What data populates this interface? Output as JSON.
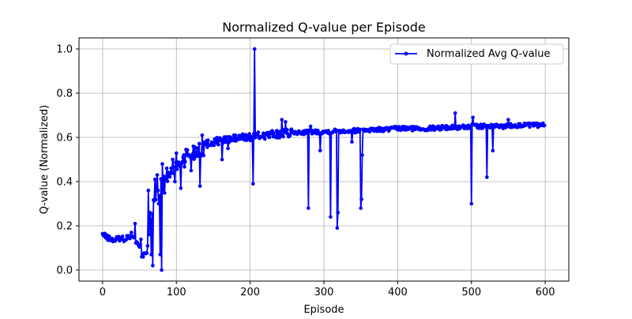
{
  "chart_data": {
    "type": "line",
    "title": "Normalized Q-value per Episode",
    "xlabel": "Episode",
    "ylabel": "Q-value (Normalized)",
    "xlim": [
      -32,
      632
    ],
    "ylim": [
      -0.05,
      1.05
    ],
    "xticks": [
      0,
      100,
      200,
      300,
      400,
      500,
      600
    ],
    "yticks": [
      0.0,
      0.2,
      0.4,
      0.6,
      0.8,
      1.0
    ],
    "xtick_labels": [
      "0",
      "100",
      "200",
      "300",
      "400",
      "500",
      "600"
    ],
    "ytick_labels": [
      "0.0",
      "0.2",
      "0.4",
      "0.6",
      "0.8",
      "1.0"
    ],
    "grid": true,
    "legend_position": "top-right",
    "series": [
      {
        "name": "Normalized Avg Q-value",
        "color": "#0000ff",
        "marker": "circle",
        "anchors": [
          [
            0,
            0.16
          ],
          [
            5,
            0.15
          ],
          [
            10,
            0.14
          ],
          [
            15,
            0.135
          ],
          [
            20,
            0.14
          ],
          [
            25,
            0.145
          ],
          [
            30,
            0.14
          ],
          [
            35,
            0.15
          ],
          [
            40,
            0.16
          ],
          [
            45,
            0.13
          ],
          [
            50,
            0.1
          ],
          [
            55,
            0.09
          ],
          [
            60,
            0.1
          ],
          [
            65,
            0.22
          ],
          [
            70,
            0.3
          ],
          [
            75,
            0.35
          ],
          [
            80,
            0.38
          ],
          [
            85,
            0.4
          ],
          [
            90,
            0.43
          ],
          [
            95,
            0.45
          ],
          [
            100,
            0.48
          ],
          [
            105,
            0.49
          ],
          [
            110,
            0.5
          ],
          [
            115,
            0.52
          ],
          [
            120,
            0.53
          ],
          [
            130,
            0.55
          ],
          [
            140,
            0.57
          ],
          [
            150,
            0.58
          ],
          [
            160,
            0.585
          ],
          [
            170,
            0.59
          ],
          [
            180,
            0.595
          ],
          [
            190,
            0.6
          ],
          [
            200,
            0.6
          ],
          [
            210,
            0.605
          ],
          [
            220,
            0.61
          ],
          [
            240,
            0.615
          ],
          [
            260,
            0.62
          ],
          [
            280,
            0.625
          ],
          [
            300,
            0.625
          ],
          [
            320,
            0.63
          ],
          [
            340,
            0.63
          ],
          [
            360,
            0.635
          ],
          [
            380,
            0.635
          ],
          [
            400,
            0.64
          ],
          [
            420,
            0.64
          ],
          [
            440,
            0.64
          ],
          [
            460,
            0.645
          ],
          [
            480,
            0.645
          ],
          [
            500,
            0.65
          ],
          [
            520,
            0.65
          ],
          [
            540,
            0.65
          ],
          [
            560,
            0.655
          ],
          [
            580,
            0.655
          ],
          [
            599,
            0.655
          ]
        ],
        "spikes": [
          [
            44,
            0.21
          ],
          [
            62,
            0.36
          ],
          [
            64,
            0.26
          ],
          [
            66,
            0.07
          ],
          [
            68,
            0.02
          ],
          [
            71,
            0.41
          ],
          [
            74,
            0.43
          ],
          [
            76,
            0.3
          ],
          [
            78,
            0.07
          ],
          [
            80,
            0.0
          ],
          [
            81,
            0.48
          ],
          [
            85,
            0.42
          ],
          [
            95,
            0.5
          ],
          [
            98,
            0.4
          ],
          [
            106,
            0.37
          ],
          [
            110,
            0.52
          ],
          [
            120,
            0.45
          ],
          [
            132,
            0.38
          ],
          [
            135,
            0.61
          ],
          [
            162,
            0.5
          ],
          [
            170,
            0.55
          ],
          [
            204,
            0.39
          ],
          [
            206,
            1.0
          ],
          [
            243,
            0.68
          ],
          [
            248,
            0.67
          ],
          [
            279,
            0.28
          ],
          [
            282,
            0.65
          ],
          [
            295,
            0.54
          ],
          [
            309,
            0.24
          ],
          [
            318,
            0.19
          ],
          [
            319,
            0.26
          ],
          [
            338,
            0.58
          ],
          [
            350,
            0.28
          ],
          [
            351,
            0.32
          ],
          [
            352,
            0.52
          ],
          [
            478,
            0.71
          ],
          [
            500,
            0.3
          ],
          [
            502,
            0.69
          ],
          [
            521,
            0.42
          ],
          [
            529,
            0.54
          ],
          [
            550,
            0.68
          ]
        ]
      }
    ]
  }
}
